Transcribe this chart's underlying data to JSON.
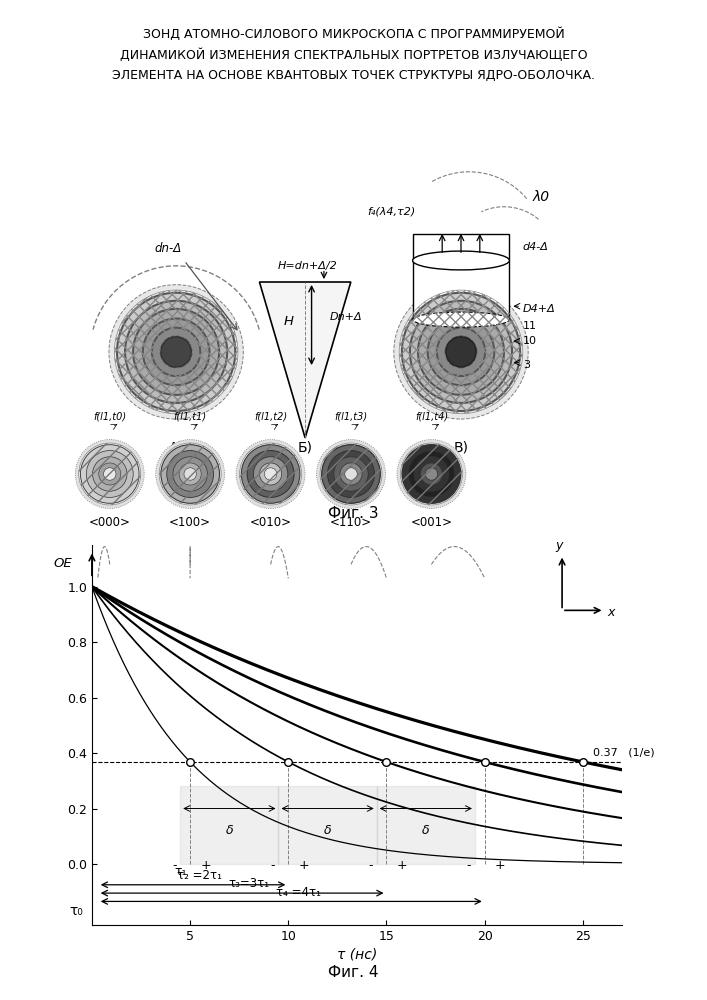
{
  "title_line1": "ЗОНД АТОМНО-СИЛОВОГО МИКРОСКОПА С ПРОГРАММИРУЕМОЙ",
  "title_line2": "ДИНАМИКОЙ ИЗМЕНЕНИЯ СПЕКТРАЛЬНЫХ ПОРТРЕТОВ ИЗЛУЧАЮЩЕГО",
  "title_line3": "ЭЛЕМЕНТА НА ОСНОВЕ КВАНТОВЫХ ТОЧЕК СТРУКТУРЫ ЯДРО-ОБОЛОЧКА.",
  "fig3_label": "Фиг. 3",
  "fig4_label": "Фиг. 4",
  "tau_values": [
    5,
    10,
    15,
    20,
    25
  ],
  "state_labels": [
    "<000>",
    "<100>",
    "<010>",
    "<110>",
    "<001>"
  ],
  "f_labels": [
    "f(l1,t0)",
    "f(l1,t1)",
    "f(l1,t2)",
    "f(l1,t3)",
    "f(l1,t4)"
  ],
  "oe_label": "OE",
  "tau_axis_label": "t (нс)",
  "inv_e_val": 0.3679,
  "inv_e_text": "0.37   (1/e)",
  "xlim": [
    0,
    27
  ],
  "ylim": [
    -0.22,
    1.15
  ],
  "yticks": [
    0.0,
    0.2,
    0.4,
    0.6,
    0.8,
    1.0
  ],
  "xticks": [
    5,
    10,
    15,
    20,
    25
  ],
  "line_widths": [
    0.9,
    1.2,
    1.5,
    1.9,
    2.3
  ]
}
